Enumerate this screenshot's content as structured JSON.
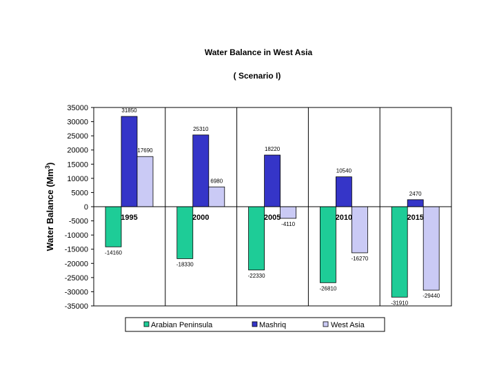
{
  "chart_data": {
    "type": "bar",
    "title": "Water Balance in West Asia",
    "subtitle": "( Scenario I)",
    "ylabel": "Water Balance (Mm",
    "ylabel_superscript": "3",
    "ylabel_suffix": ")",
    "xlabel": "",
    "ylim": [
      -35000,
      35000
    ],
    "y_ticks": [
      35000,
      30000,
      25000,
      20000,
      15000,
      10000,
      5000,
      0,
      -5000,
      -10000,
      -15000,
      -20000,
      -25000,
      -30000,
      -35000
    ],
    "y_tick_labels": [
      "35000",
      "30000",
      "25000",
      "20000",
      "15000",
      "10000",
      "5000",
      "0",
      "-5000",
      "-10000",
      "-15000",
      "-20000",
      "-25000",
      "-30000",
      "-35000"
    ],
    "categories": [
      "1995",
      "2000",
      "2005",
      "2010",
      "2015"
    ],
    "series": [
      {
        "name": "Arabian Peninsula",
        "color": "#1ecc97",
        "values": [
          -14160,
          -18330,
          -22330,
          -26810,
          -31910
        ],
        "labels": [
          "-14160",
          "-18330",
          "-22330",
          "-26810",
          "-31910"
        ]
      },
      {
        "name": "Mashriq",
        "color": "#3535c8",
        "values": [
          31850,
          25310,
          18220,
          10540,
          2470
        ],
        "labels": [
          "31850",
          "25310",
          "18220",
          "10540",
          "2470"
        ]
      },
      {
        "name": "West Asia",
        "color": "#cacaf5",
        "values": [
          17690,
          6980,
          -4110,
          -16270,
          -29440
        ],
        "labels": [
          "17690",
          "6980",
          "-4110",
          "-16270",
          "-29440"
        ]
      }
    ],
    "grid": "vertical-category-separators",
    "legend_position": "bottom"
  }
}
